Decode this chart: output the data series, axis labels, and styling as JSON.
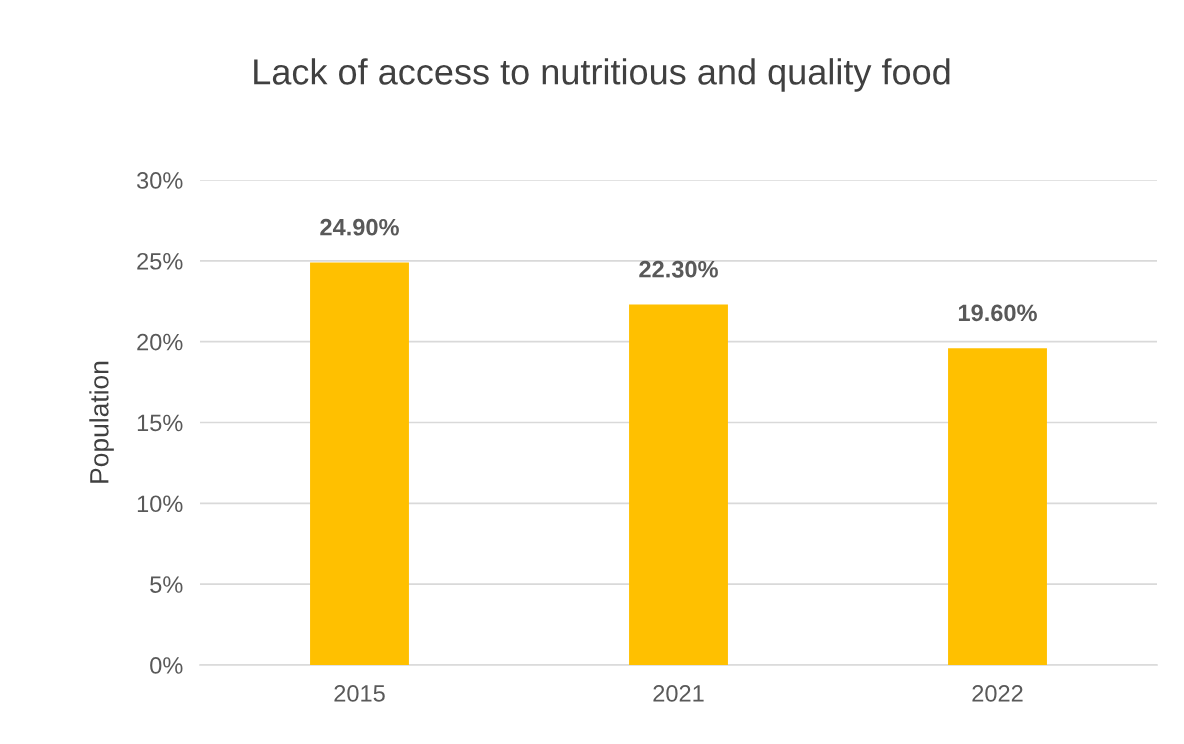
{
  "chart_data": {
    "type": "bar",
    "title": "Lack of access to nutritious and quality food",
    "ylabel": "Population",
    "categories": [
      "2015",
      "2021",
      "2022"
    ],
    "values": [
      24.9,
      22.3,
      19.6
    ],
    "value_labels": [
      "24.90%",
      "22.30%",
      "19.60%"
    ],
    "color": "#ffc000",
    "ylim": [
      0,
      30
    ],
    "yticks": [
      {
        "value": 0,
        "label": "0%"
      },
      {
        "value": 5,
        "label": "5%"
      },
      {
        "value": 10,
        "label": "10%"
      },
      {
        "value": 15,
        "label": "15%"
      },
      {
        "value": 20,
        "label": "20%"
      },
      {
        "value": 25,
        "label": "25%"
      },
      {
        "value": 30,
        "label": "30%"
      }
    ],
    "grid": "y",
    "legend": false
  }
}
